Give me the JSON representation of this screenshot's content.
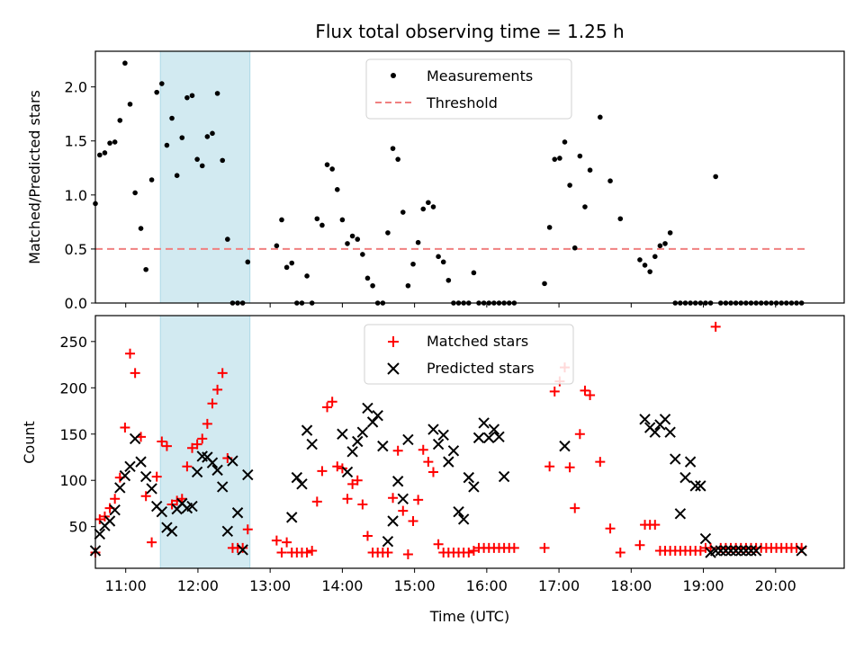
{
  "title": "Flux total observing time = 1.25 h",
  "colors": {
    "measurement": "#000000",
    "threshold": "#f08080",
    "matched": "#ff0000",
    "predicted": "#000000",
    "highlight": "#add8e6"
  },
  "chart_data": [
    {
      "type": "scatter",
      "panel": "top",
      "ylabel": "Matched/Predicted stars",
      "ylim": [
        0,
        2.33
      ],
      "yticks": [
        "0.0",
        "0.5",
        "1.0",
        "1.5",
        "2.0"
      ],
      "xlim": [
        10.58,
        20.95
      ],
      "highlight_span": [
        11.48,
        12.72
      ],
      "threshold": 0.5,
      "threshold_x": [
        10.58,
        20.42
      ],
      "legend": {
        "placement": "upper-center",
        "entries": [
          "Measurements",
          "Threshold"
        ]
      },
      "series": [
        {
          "name": "Measurements",
          "x": [
            10.58,
            10.64,
            10.71,
            10.78,
            10.85,
            10.92,
            10.99,
            11.06,
            11.13,
            11.21,
            11.28,
            11.36,
            11.43,
            11.5,
            11.57,
            11.64,
            11.71,
            11.78,
            11.85,
            11.92,
            11.99,
            12.06,
            12.13,
            12.2,
            12.27,
            12.34,
            12.41,
            12.48,
            12.55,
            12.62,
            12.69,
            13.09,
            13.16,
            13.23,
            13.3,
            13.37,
            13.44,
            13.51,
            13.58,
            13.65,
            13.72,
            13.79,
            13.86,
            13.93,
            14.0,
            14.07,
            14.14,
            14.21,
            14.28,
            14.35,
            14.42,
            14.49,
            14.56,
            14.63,
            14.7,
            14.77,
            14.84,
            14.91,
            14.98,
            15.05,
            15.12,
            15.19,
            15.26,
            15.33,
            15.4,
            15.47,
            15.54,
            15.61,
            15.68,
            15.75,
            15.82,
            15.89,
            15.96,
            16.03,
            16.1,
            16.17,
            16.24,
            16.31,
            16.38,
            16.8,
            16.87,
            16.94,
            17.01,
            17.08,
            17.15,
            17.22,
            17.29,
            17.36,
            17.43,
            17.57,
            17.71,
            17.85,
            18.12,
            18.19,
            18.26,
            18.33,
            18.4,
            18.47,
            18.54,
            18.61,
            18.68,
            18.75,
            18.82,
            18.89,
            18.96,
            19.03,
            19.1,
            19.17,
            19.24,
            19.31,
            19.38,
            19.45,
            19.52,
            19.59,
            19.66,
            19.73,
            19.8,
            19.87,
            19.94,
            20.01,
            20.08,
            20.15,
            20.22,
            20.29,
            20.36
          ],
          "y": [
            0.92,
            1.37,
            1.39,
            1.48,
            1.49,
            1.69,
            2.22,
            1.84,
            1.02,
            0.69,
            0.31,
            1.14,
            1.95,
            2.03,
            1.46,
            1.71,
            1.18,
            1.53,
            1.9,
            1.92,
            1.33,
            1.27,
            1.54,
            1.57,
            1.94,
            1.32,
            0.59,
            0.0,
            0.0,
            0.0,
            0.38,
            0.53,
            0.77,
            0.33,
            0.37,
            0.0,
            0.0,
            0.25,
            0.0,
            0.78,
            0.72,
            1.28,
            1.24,
            1.05,
            0.77,
            0.55,
            0.62,
            0.59,
            0.45,
            0.23,
            0.16,
            0.0,
            0.0,
            0.65,
            1.43,
            1.33,
            0.84,
            0.16,
            0.36,
            0.56,
            0.87,
            0.93,
            0.89,
            0.43,
            0.38,
            0.21,
            0.0,
            0.0,
            0.0,
            0.0,
            0.28,
            0.0,
            0.0,
            0.0,
            0.0,
            0.0,
            0.0,
            0.0,
            0.0,
            0.18,
            0.7,
            1.33,
            1.34,
            1.49,
            1.09,
            0.51,
            1.36,
            0.89,
            1.23,
            1.72,
            1.13,
            0.78,
            0.4,
            0.35,
            0.29,
            0.43,
            0.53,
            0.55,
            0.65,
            0.0,
            0.0,
            0.0,
            0.0,
            0.0,
            0.0,
            0.0,
            0.0,
            1.17,
            0.0,
            0.0,
            0.0,
            0.0,
            0.0,
            0.0,
            0.0,
            0.0,
            0.0,
            0.0,
            0.0,
            0.0,
            0.0,
            0.0,
            0.0,
            0.0,
            0.0
          ]
        }
      ]
    },
    {
      "type": "scatter",
      "panel": "bottom",
      "xlabel": "Time (UTC)",
      "ylabel": "Count",
      "ylim": [
        5,
        278
      ],
      "yticks": [
        "50",
        "100",
        "150",
        "200",
        "250"
      ],
      "xlim": [
        10.58,
        20.95
      ],
      "xticks": [
        "11:00",
        "12:00",
        "13:00",
        "14:00",
        "15:00",
        "16:00",
        "17:00",
        "18:00",
        "19:00",
        "20:00"
      ],
      "highlight_span": [
        11.48,
        12.72
      ],
      "legend": {
        "placement": "upper-center",
        "entries": [
          "Matched stars",
          "Predicted stars"
        ]
      },
      "series": [
        {
          "name": "Matched stars",
          "x": [
            10.58,
            10.64,
            10.71,
            10.78,
            10.85,
            10.92,
            10.99,
            11.06,
            11.13,
            11.21,
            11.28,
            11.36,
            11.43,
            11.5,
            11.57,
            11.64,
            11.71,
            11.78,
            11.85,
            11.92,
            11.99,
            12.06,
            12.13,
            12.2,
            12.27,
            12.34,
            12.41,
            12.48,
            12.55,
            12.62,
            12.69,
            13.09,
            13.16,
            13.23,
            13.3,
            13.37,
            13.44,
            13.51,
            13.58,
            13.65,
            13.72,
            13.79,
            13.86,
            13.93,
            14.0,
            14.07,
            14.14,
            14.21,
            14.28,
            14.35,
            14.42,
            14.49,
            14.56,
            14.63,
            14.7,
            14.77,
            14.84,
            14.91,
            14.98,
            15.05,
            15.12,
            15.19,
            15.26,
            15.33,
            15.4,
            15.47,
            15.54,
            15.61,
            15.68,
            15.75,
            15.82,
            15.89,
            15.96,
            16.03,
            16.1,
            16.17,
            16.24,
            16.31,
            16.38,
            16.8,
            16.87,
            16.94,
            17.01,
            17.08,
            17.15,
            17.22,
            17.29,
            17.36,
            17.43,
            17.57,
            17.71,
            17.85,
            18.12,
            18.19,
            18.26,
            18.33,
            18.4,
            18.47,
            18.54,
            18.61,
            18.68,
            18.75,
            18.82,
            18.89,
            18.96,
            19.03,
            19.1,
            19.17,
            19.24,
            19.31,
            19.38,
            19.45,
            19.52,
            19.59,
            19.66,
            19.73,
            19.8,
            19.87,
            19.94,
            20.01,
            20.08,
            20.15,
            20.22,
            20.29,
            20.36
          ],
          "y": [
            22,
            58,
            61,
            70,
            80,
            103,
            157,
            237,
            216,
            147,
            83,
            33,
            104,
            142,
            137,
            74,
            78,
            80,
            115,
            135,
            139,
            145,
            161,
            183,
            198,
            216,
            124,
            27,
            27,
            27,
            47,
            35,
            22,
            33,
            22,
            22,
            22,
            22,
            24,
            77,
            110,
            179,
            185,
            115,
            113,
            80,
            96,
            100,
            74,
            40,
            22,
            22,
            22,
            22,
            81,
            132,
            67,
            20,
            56,
            79,
            133,
            120,
            109,
            31,
            22,
            22,
            22,
            22,
            22,
            22,
            24,
            27,
            27,
            27,
            27,
            27,
            27,
            27,
            27,
            27,
            115,
            196,
            207,
            222,
            114,
            70,
            150,
            197,
            192,
            120,
            48,
            22,
            30,
            52,
            52,
            52,
            24,
            24,
            24,
            24,
            24,
            24,
            24,
            24,
            24,
            27,
            27,
            266,
            27,
            27,
            27,
            27,
            27,
            27,
            27,
            27,
            27,
            27,
            27,
            27,
            27,
            27,
            27,
            27,
            27
          ]
        },
        {
          "name": "Predicted stars",
          "x": [
            10.58,
            10.64,
            10.71,
            10.78,
            10.85,
            10.92,
            10.99,
            11.06,
            11.13,
            11.21,
            11.28,
            11.36,
            11.43,
            11.5,
            11.57,
            11.64,
            11.71,
            11.78,
            11.85,
            11.92,
            11.99,
            12.06,
            12.13,
            12.2,
            12.27,
            12.34,
            12.41,
            12.48,
            12.55,
            12.62,
            12.69,
            13.3,
            13.37,
            13.44,
            13.51,
            13.58,
            14.0,
            14.07,
            14.14,
            14.21,
            14.28,
            14.35,
            14.42,
            14.49,
            14.56,
            14.63,
            14.7,
            14.77,
            14.84,
            14.91,
            15.26,
            15.33,
            15.4,
            15.47,
            15.54,
            15.61,
            15.68,
            15.75,
            15.82,
            15.89,
            15.96,
            16.03,
            16.1,
            16.17,
            16.24,
            17.08,
            18.19,
            18.26,
            18.33,
            18.4,
            18.47,
            18.54,
            18.61,
            18.68,
            18.75,
            18.82,
            18.89,
            18.96,
            19.03,
            19.1,
            19.17,
            19.24,
            19.31,
            19.38,
            19.45,
            19.52,
            19.59,
            19.66,
            19.73,
            20.36
          ],
          "y": [
            24,
            42,
            51,
            56,
            68,
            92,
            105,
            115,
            145,
            120,
            104,
            91,
            72,
            66,
            49,
            45,
            69,
            75,
            70,
            72,
            109,
            126,
            125,
            119,
            111,
            93,
            45,
            121,
            65,
            25,
            106,
            60,
            103,
            96,
            154,
            139,
            150,
            109,
            131,
            142,
            152,
            178,
            163,
            170,
            137,
            34,
            56,
            99,
            80,
            144,
            155,
            139,
            149,
            120,
            132,
            66,
            58,
            103,
            93,
            146,
            162,
            146,
            155,
            147,
            104,
            137,
            166,
            157,
            152,
            160,
            166,
            152,
            123,
            64,
            103,
            120,
            94,
            94,
            37,
            22,
            24,
            24,
            24,
            24,
            24,
            24,
            24,
            24,
            24,
            24
          ]
        }
      ]
    }
  ]
}
